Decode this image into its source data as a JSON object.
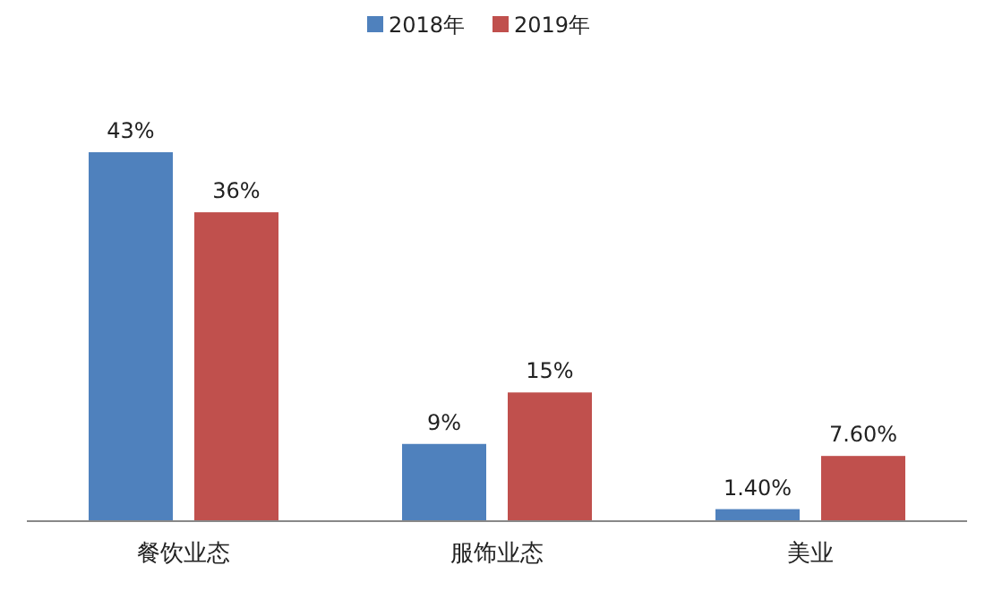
{
  "chart_data": {
    "type": "bar",
    "categories": [
      "餐饮业态",
      "服饰业态",
      "美业"
    ],
    "series": [
      {
        "name": "2018年",
        "color": "#4f81bd",
        "values": [
          43,
          9,
          1.4
        ],
        "value_labels": [
          "43%",
          "9%",
          "1.40%"
        ]
      },
      {
        "name": "2019年",
        "color": "#c0504d",
        "values": [
          36,
          15,
          7.6
        ],
        "value_labels": [
          "36%",
          "15%",
          "7.60%"
        ]
      }
    ],
    "legend": "top"
  }
}
